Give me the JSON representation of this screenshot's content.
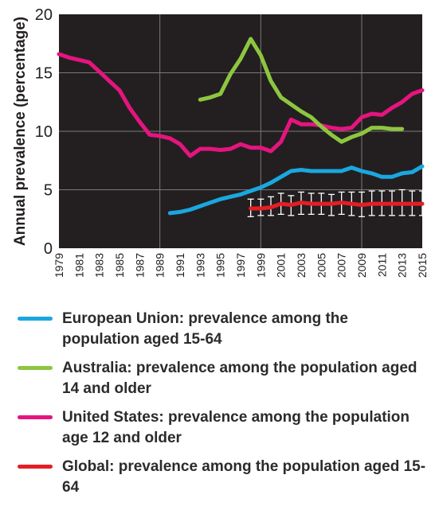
{
  "chart_data": {
    "type": "line",
    "title": "",
    "xlabel": "",
    "ylabel": "Annual prevalence (percentage)",
    "xlim": [
      1979,
      2015
    ],
    "ylim": [
      0,
      20
    ],
    "y_ticks": [
      "0",
      "5",
      "10",
      "15",
      "20"
    ],
    "x_ticks": [
      "1979",
      "1981",
      "1983",
      "1985",
      "1987",
      "1989",
      "1991",
      "1993",
      "1995",
      "1997",
      "1999",
      "2001",
      "2003",
      "2005",
      "2007",
      "2009",
      "2011",
      "2013",
      "2015"
    ],
    "grid": true,
    "legend_position": "bottom",
    "background": "#231f20",
    "series": [
      {
        "name": "European Union: prevalence among the population aged 15-64",
        "color": "#1aa7e0",
        "x": [
          1990,
          1991,
          1992,
          1993,
          1994,
          1995,
          1996,
          1997,
          1998,
          1999,
          2000,
          2001,
          2002,
          2003,
          2004,
          2005,
          2006,
          2007,
          2008,
          2009,
          2010,
          2011,
          2012,
          2013,
          2014,
          2015
        ],
        "y": [
          3.0,
          3.1,
          3.3,
          3.6,
          3.9,
          4.2,
          4.4,
          4.6,
          4.9,
          5.2,
          5.6,
          6.1,
          6.6,
          6.7,
          6.6,
          6.6,
          6.6,
          6.6,
          6.9,
          6.6,
          6.4,
          6.1,
          6.1,
          6.4,
          6.5,
          7.0
        ]
      },
      {
        "name": "Australia: prevalence among the population aged 14 and older",
        "color": "#8dc63f",
        "x": [
          1993,
          1994,
          1995,
          1996,
          1997,
          1998,
          1999,
          2000,
          2001,
          2002,
          2003,
          2004,
          2005,
          2006,
          2007,
          2008,
          2009,
          2010,
          2011,
          2012,
          2013
        ],
        "y": [
          12.7,
          12.9,
          13.2,
          14.9,
          16.2,
          17.9,
          16.5,
          14.3,
          12.9,
          12.3,
          11.7,
          11.2,
          10.4,
          9.7,
          9.1,
          9.5,
          9.8,
          10.3,
          10.3,
          10.2,
          10.2
        ]
      },
      {
        "name": "United States: prevalence among the population age 12 and older",
        "color": "#e5147f",
        "x": [
          1979,
          1980,
          1981,
          1982,
          1983,
          1984,
          1985,
          1986,
          1987,
          1988,
          1989,
          1990,
          1991,
          1992,
          1993,
          1994,
          1995,
          1996,
          1997,
          1998,
          1999,
          2000,
          2001,
          2002,
          2003,
          2004,
          2005,
          2006,
          2007,
          2008,
          2009,
          2010,
          2011,
          2012,
          2013,
          2014,
          2015
        ],
        "y": [
          16.6,
          16.3,
          16.1,
          15.9,
          15.1,
          14.3,
          13.5,
          12.0,
          10.8,
          9.7,
          9.6,
          9.4,
          8.9,
          7.9,
          8.5,
          8.5,
          8.4,
          8.5,
          8.9,
          8.6,
          8.6,
          8.3,
          9.1,
          11.0,
          10.6,
          10.6,
          10.5,
          10.3,
          10.2,
          10.3,
          11.2,
          11.5,
          11.4,
          12.0,
          12.5,
          13.2,
          13.5
        ]
      },
      {
        "name": "Global: prevalence among the population aged 15-64",
        "color": "#e41e26",
        "x": [
          1998,
          1999,
          2000,
          2001,
          2002,
          2003,
          2004,
          2005,
          2006,
          2007,
          2008,
          2009,
          2010,
          2011,
          2012,
          2013,
          2014,
          2015
        ],
        "y": [
          3.4,
          3.4,
          3.5,
          3.8,
          3.7,
          3.9,
          3.8,
          3.8,
          3.8,
          3.9,
          3.8,
          3.7,
          3.8,
          3.8,
          3.8,
          3.8,
          3.8,
          3.8
        ],
        "err_low": [
          2.7,
          2.8,
          2.8,
          2.9,
          2.8,
          2.9,
          2.9,
          2.9,
          2.8,
          2.9,
          2.8,
          2.7,
          2.8,
          2.8,
          2.8,
          2.8,
          2.8,
          2.8
        ],
        "err_high": [
          4.2,
          4.2,
          4.4,
          4.7,
          4.5,
          4.8,
          4.7,
          4.7,
          4.6,
          4.8,
          4.8,
          4.8,
          4.9,
          4.9,
          4.9,
          5.0,
          4.9,
          4.9
        ]
      }
    ]
  }
}
